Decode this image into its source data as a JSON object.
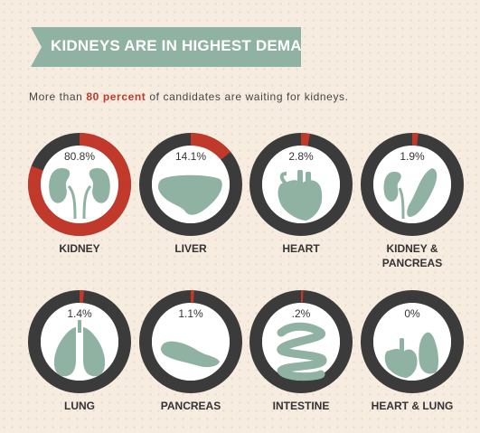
{
  "header": {
    "title": "KIDNEYS ARE IN HIGHEST DEMAND"
  },
  "subtitle": {
    "before": "More than ",
    "highlight": "80 percent",
    "after": " of candidates are waiting for kidneys."
  },
  "colors": {
    "ring": "#3b3b3b",
    "accent": "#c0392b",
    "organ": "#8fb2a2",
    "inner": "#ffffff",
    "text": "#333333"
  },
  "chart_data": {
    "type": "pie",
    "title": "KIDNEYS ARE IN HIGHEST DEMAND",
    "categories": [
      "KIDNEY",
      "LIVER",
      "HEART",
      "KIDNEY & PANCREAS",
      "LUNG",
      "PANCREAS",
      "INTESTINE",
      "HEART & LUNG"
    ],
    "values": [
      80.8,
      14.1,
      2.8,
      1.9,
      1.4,
      1.1,
      0.2,
      0
    ],
    "value_labels": [
      "80.8%",
      "14.1%",
      "2.8%",
      "1.9%",
      "1.4%",
      "1.1%",
      ".2%",
      "0%"
    ],
    "label_lines": [
      [
        "KIDNEY"
      ],
      [
        "LIVER"
      ],
      [
        "HEART"
      ],
      [
        "KIDNEY &",
        "PANCREAS"
      ],
      [
        "LUNG"
      ],
      [
        "PANCREAS"
      ],
      [
        "INTESTINE"
      ],
      [
        "HEART & LUNG"
      ]
    ],
    "icons": [
      "kidneys-icon",
      "liver-icon",
      "heart-icon",
      "kidney-pancreas-icon",
      "lungs-icon",
      "pancreas-icon",
      "intestine-icon",
      "heart-lung-icon"
    ],
    "unit": "percent"
  }
}
